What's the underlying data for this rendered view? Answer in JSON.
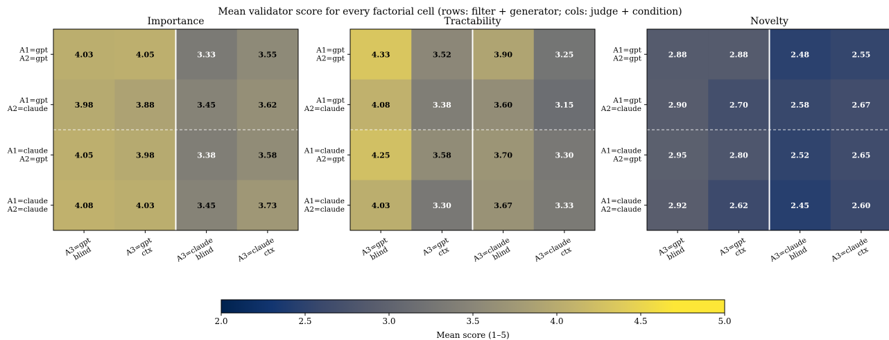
{
  "chart_data": {
    "type": "heatmap",
    "title": "Mean validator score for every factorial cell (rows: filter + generator; cols: judge + condition)",
    "row_labels": [
      [
        "A1=gpt",
        "A2=gpt"
      ],
      [
        "A1=gpt",
        "A2=claude"
      ],
      [
        "A1=claude",
        "A2=gpt"
      ],
      [
        "A1=claude",
        "A2=claude"
      ]
    ],
    "col_labels": [
      [
        "A3=gpt",
        "blind"
      ],
      [
        "A3=gpt",
        "ctx"
      ],
      [
        "A3=claude",
        "blind"
      ],
      [
        "A3=claude",
        "ctx"
      ]
    ],
    "panels": [
      {
        "title": "Importance",
        "values": [
          [
            4.03,
            4.05,
            3.33,
            3.55
          ],
          [
            3.98,
            3.88,
            3.45,
            3.62
          ],
          [
            4.05,
            3.98,
            3.38,
            3.58
          ],
          [
            4.08,
            4.03,
            3.45,
            3.73
          ]
        ]
      },
      {
        "title": "Tractability",
        "values": [
          [
            4.33,
            3.52,
            3.9,
            3.25
          ],
          [
            4.08,
            3.38,
            3.6,
            3.15
          ],
          [
            4.25,
            3.58,
            3.7,
            3.3
          ],
          [
            4.03,
            3.3,
            3.67,
            3.33
          ]
        ]
      },
      {
        "title": "Novelty",
        "values": [
          [
            2.88,
            2.88,
            2.48,
            2.55
          ],
          [
            2.9,
            2.7,
            2.58,
            2.67
          ],
          [
            2.95,
            2.8,
            2.52,
            2.65
          ],
          [
            2.92,
            2.62,
            2.45,
            2.6
          ]
        ]
      }
    ],
    "colorbar": {
      "colormap": "cividis",
      "vmin": 2.0,
      "vmax": 5.0,
      "ticks": [
        "2.0",
        "2.5",
        "3.0",
        "3.5",
        "4.0",
        "4.5",
        "5.0"
      ],
      "label": "Mean score (1–5)"
    },
    "separators": {
      "vertical_between_cols": "solid white",
      "horizontal_between_rows": "dashed white"
    }
  }
}
